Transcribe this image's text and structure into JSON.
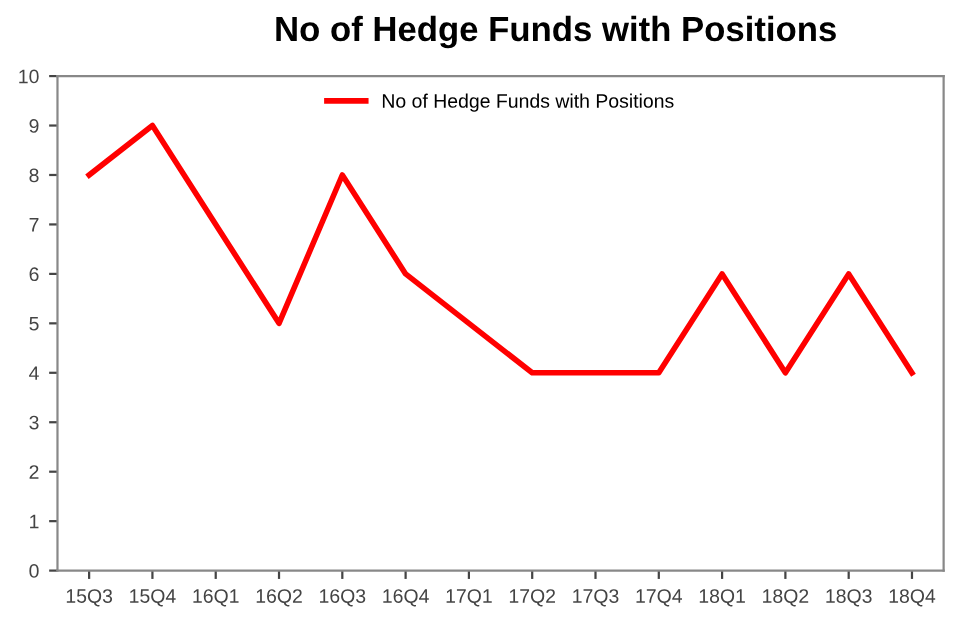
{
  "chart_data": {
    "type": "line",
    "title": "No of Hedge Funds with Positions",
    "categories": [
      "15Q3",
      "15Q4",
      "16Q1",
      "16Q2",
      "16Q3",
      "16Q4",
      "17Q1",
      "17Q2",
      "17Q3",
      "17Q4",
      "18Q1",
      "18Q2",
      "18Q3",
      "18Q4"
    ],
    "series": [
      {
        "name": "No of Hedge Funds with Positions",
        "color": "#ff0000",
        "values": [
          8,
          9,
          7,
          5,
          8,
          6,
          5,
          4,
          4,
          4,
          6,
          4,
          6,
          4
        ]
      }
    ],
    "ylim": [
      0,
      10
    ],
    "yticks": [
      0,
      1,
      2,
      3,
      4,
      5,
      6,
      7,
      8,
      9,
      10
    ],
    "grid": false,
    "legend": "top",
    "marker": "none",
    "line_style": "solid"
  }
}
